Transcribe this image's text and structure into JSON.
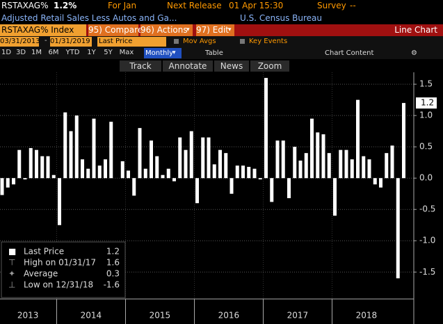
{
  "header": {
    "ticker": "RSTAXAG%",
    "last": "1.2%",
    "period": "For Jan",
    "release_label": "Next Release",
    "release": "01 Apr 15:30",
    "survey_label": "Survey",
    "survey": "--",
    "description": "Adjusted Retail Sales Less Autos and Ga...",
    "source": "U.S. Census Bureau"
  },
  "toolbar": {
    "security": "RSTAXAG% Index",
    "compare": "95) Compare",
    "actions": "96) Actions",
    "edit": "97) Edit",
    "view": "Line Chart"
  },
  "range": {
    "start": "03/31/2013",
    "end": "01/31/2019",
    "field": "Last Price",
    "mov_avgs": "Mov Avgs",
    "key_events": "Key Events"
  },
  "periods": [
    "1D",
    "3D",
    "1M",
    "6M",
    "YTD",
    "1Y",
    "5Y",
    "Max"
  ],
  "frequency": "Monthly",
  "table": "Table",
  "chart_content": "Chart Content",
  "tools": [
    "Track",
    "Annotate",
    "News",
    "Zoom"
  ],
  "chart_data": {
    "type": "bar",
    "color": "#ffffff",
    "values": [
      -0.27,
      -0.15,
      -0.1,
      0.45,
      -0.02,
      0.48,
      0.45,
      0.35,
      0.35,
      0.05,
      -0.75,
      1.05,
      0.75,
      1.0,
      0.3,
      0.15,
      0.95,
      0.2,
      0.3,
      0.9,
      0.0,
      0.27,
      0.12,
      -0.28,
      0.8,
      0.15,
      0.6,
      0.35,
      0.05,
      0.15,
      -0.05,
      0.65,
      0.45,
      0.75,
      -0.4,
      0.65,
      0.65,
      0.22,
      0.45,
      0.4,
      -0.25,
      0.2,
      0.2,
      0.18,
      0.15,
      -0.02,
      1.6,
      -0.38,
      0.6,
      0.6,
      -0.32,
      0.5,
      0.28,
      0.4,
      0.95,
      0.73,
      0.7,
      0.4,
      -0.6,
      0.45,
      0.45,
      0.3,
      1.25,
      0.35,
      0.3,
      -0.1,
      -0.15,
      0.4,
      0.52,
      -1.6,
      1.2
    ],
    "x_labels": [
      "2013",
      "2014",
      "2015",
      "2016",
      "2017",
      "2018"
    ],
    "ylim": [
      -1.93,
      1.69
    ],
    "yticks": [
      1.5,
      {
        "value": 1.0,
        "label": "1.0"
      },
      0.5,
      {
        "value": 0.0,
        "label": "0.0"
      },
      -0.5,
      {
        "value": -1.0,
        "label": "-1.0"
      },
      -1.5
    ],
    "grid": true,
    "legend": [
      {
        "name": "Last Price",
        "value": 1.2
      },
      {
        "name": "High on 01/31/17",
        "value": 1.6
      },
      {
        "name": "Average",
        "value": 0.3
      },
      {
        "name": "Low on 12/31/18",
        "value": -1.6
      }
    ]
  }
}
